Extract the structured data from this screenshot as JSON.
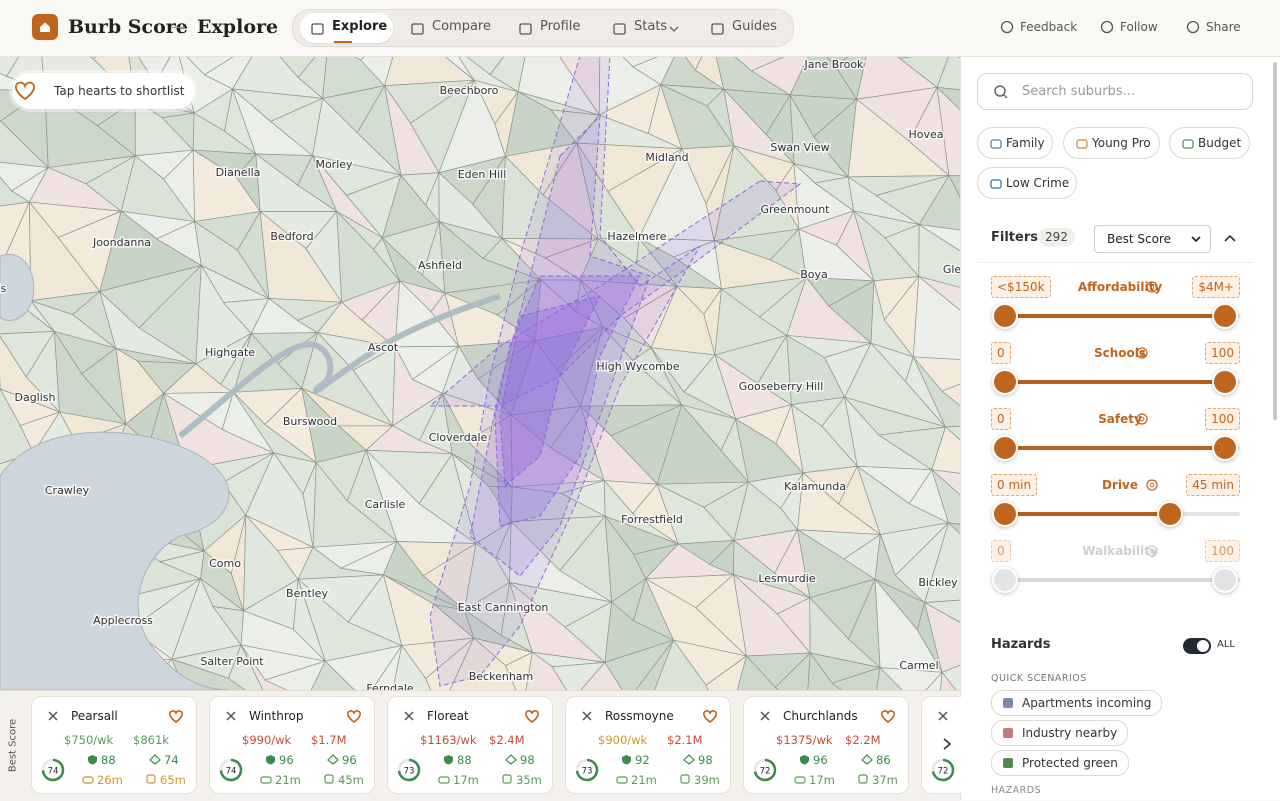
{
  "header": {
    "brand": "Burb Score",
    "section": "Explore",
    "nav": [
      "Explore",
      "Compare",
      "Profile",
      "Stats",
      "Guides"
    ],
    "actions": [
      "Feedback",
      "Follow",
      "Share"
    ]
  },
  "map": {
    "hint": "Tap hearts to shortlist",
    "labels": [
      "Jane Brook",
      "Beechboro",
      "Hovea",
      "Midland",
      "Swan View",
      "Morley",
      "Dianella",
      "Eden Hill",
      "Greenmount",
      "Joondanna",
      "Bedford",
      "Hazelmere",
      "Ashfield",
      "Boya",
      "Gle",
      "is",
      "Highgate",
      "Ascot",
      "High Wycombe",
      "Gooseberry Hill",
      "Daglish",
      "Burswood",
      "Cloverdale",
      "Crawley",
      "Carlisle",
      "Kalamunda",
      "Forrestfield",
      "Como",
      "Lesmurdie",
      "Bentley",
      "Bickley",
      "Applecross",
      "East Cannington",
      "Salter Point",
      "Carmel",
      "Beckenham",
      "Ferndale"
    ]
  },
  "sidebar": {
    "search_placeholder": "Search suburbs...",
    "presets": [
      "Family",
      "Young Pro",
      "Budget",
      "Low Crime"
    ],
    "filters_title": "Filters",
    "filters_count": "292",
    "sort": "Best Score",
    "sliders": [
      {
        "label": "Affordability",
        "min": "<$150k",
        "max": "$4M+"
      },
      {
        "label": "Schools",
        "min": "0",
        "max": "100"
      },
      {
        "label": "Safety",
        "min": "0",
        "max": "100"
      },
      {
        "label": "Drive",
        "min": "0 min",
        "max": "45 min"
      },
      {
        "label": "Walkability",
        "min": "0",
        "max": "100"
      }
    ],
    "hazards_title": "Hazards",
    "hazards_toggle": "ALL",
    "quick_scenarios_title": "QUICK SCENARIOS",
    "quick_scenarios": [
      "Apartments incoming",
      "Industry nearby",
      "Protected green"
    ],
    "hazards_subtitle": "HAZARDS"
  },
  "shortlist": {
    "title": "Best Score",
    "cards": [
      {
        "name": "Pearsall",
        "rent": "$750/wk",
        "price": "$861k",
        "score": 74,
        "schools": "88",
        "green": "74",
        "drive": "26m",
        "transit": "65m"
      },
      {
        "name": "Winthrop",
        "rent": "$990/wk",
        "price": "$1.7M",
        "score": 74,
        "schools": "96",
        "green": "96",
        "drive": "21m",
        "transit": "45m"
      },
      {
        "name": "Floreat",
        "rent": "$1163/wk",
        "price": "$2.4M",
        "score": 73,
        "schools": "88",
        "green": "98",
        "drive": "17m",
        "transit": "35m"
      },
      {
        "name": "Rossmoyne",
        "rent": "$900/wk",
        "price": "$2.1M",
        "score": 73,
        "schools": "92",
        "green": "98",
        "drive": "21m",
        "transit": "39m"
      },
      {
        "name": "Churchlands",
        "rent": "$1375/wk",
        "price": "$2.2M",
        "score": 72,
        "schools": "96",
        "green": "86",
        "drive": "17m",
        "transit": "37m"
      },
      {
        "score": 72
      }
    ]
  }
}
